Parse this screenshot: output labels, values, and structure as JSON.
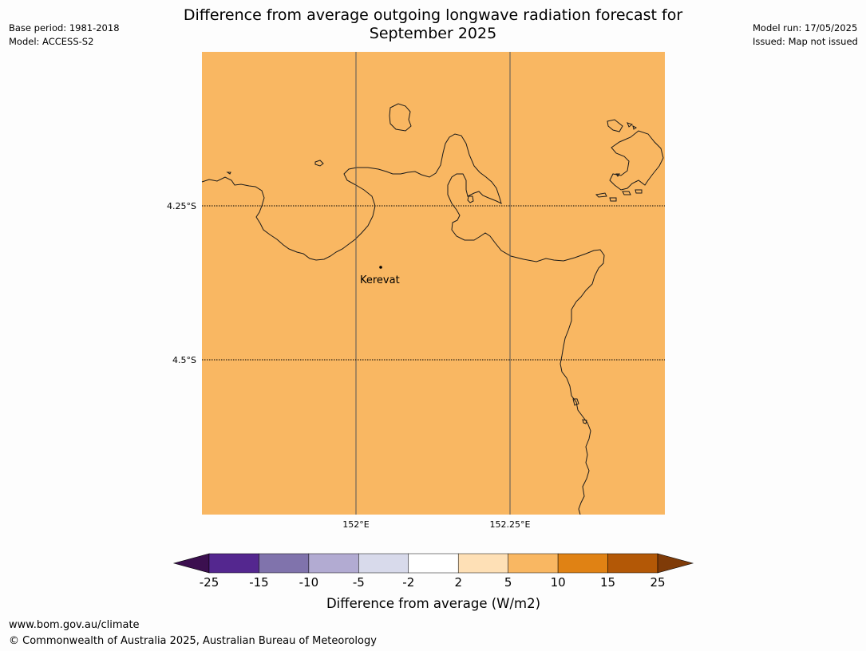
{
  "header": {
    "base_period": "Base period: 1981-2018",
    "model": "Model: ACCESS-S2",
    "model_run": "Model run: 17/05/2025",
    "issued": "Issued: Map not issued",
    "title_line1": "Difference from average outgoing longwave radiation forecast for",
    "title_line2": "September 2025"
  },
  "map": {
    "fill_color": "#f9b762",
    "coastline_color": "#1a1a1a",
    "gridline_color": "#555555",
    "lat_ticks": [
      "4.25°S",
      "4.5°S"
    ],
    "lon_ticks": [
      "152°E",
      "152.25°E"
    ],
    "place_label": "Kerevat"
  },
  "legend": {
    "title": "Difference from average (W/m2)",
    "tick_labels": [
      "-25",
      "-15",
      "-10",
      "-5",
      "-2",
      "2",
      "5",
      "10",
      "15",
      "25"
    ],
    "colors": {
      "below_min": "#3b0f4f",
      "bins": [
        "#54278f",
        "#8073ac",
        "#b2abd2",
        "#d8daeb",
        "#ffffff",
        "#fee0b6",
        "#f9b762",
        "#e08214",
        "#b35806"
      ],
      "above_max": "#7f3b08"
    }
  },
  "footer": {
    "url": "www.bom.gov.au/climate",
    "copyright": "© Commonwealth of Australia 2025, Australian Bureau of Meteorology"
  }
}
